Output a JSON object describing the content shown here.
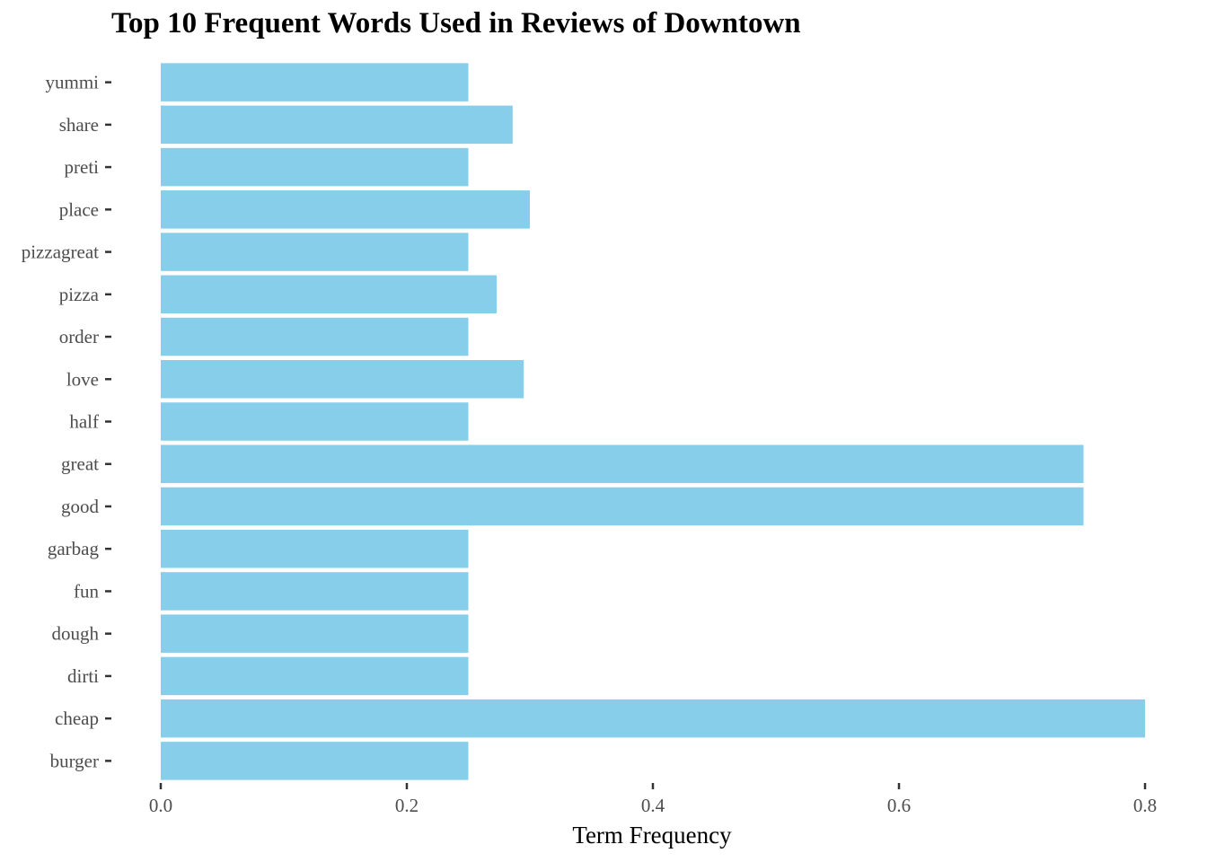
{
  "chart_data": {
    "type": "bar",
    "orientation": "horizontal",
    "title": "Top 10 Frequent Words Used in Reviews of Downtown",
    "xlabel": "Term Frequency",
    "ylabel": "",
    "categories": [
      "yummi",
      "share",
      "preti",
      "place",
      "pizzagreat",
      "pizza",
      "order",
      "love",
      "half",
      "great",
      "good",
      "garbag",
      "fun",
      "dough",
      "dirti",
      "cheap",
      "burger"
    ],
    "values": [
      0.25,
      0.286,
      0.25,
      0.3,
      0.25,
      0.273,
      0.25,
      0.295,
      0.25,
      0.75,
      0.75,
      0.25,
      0.25,
      0.25,
      0.25,
      0.8,
      0.25
    ],
    "xlim": [
      0,
      0.8
    ],
    "xticks": [
      "0.0",
      "0.2",
      "0.4",
      "0.6",
      "0.8"
    ],
    "bar_color": "#87CEEB",
    "grid": false,
    "legend": "none"
  }
}
